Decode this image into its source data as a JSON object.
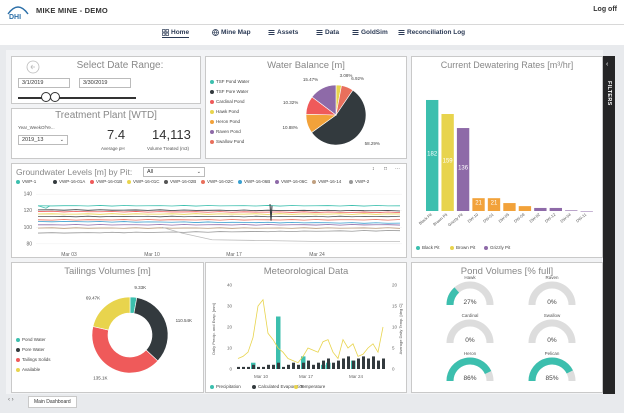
{
  "header": {
    "title": "MIKE MINE - DEMO",
    "logoff": "Log off",
    "logo_text": "DHI"
  },
  "nav": {
    "tabs": [
      {
        "label": "Home",
        "icon": "grid-icon",
        "active": true
      },
      {
        "label": "Mine Map",
        "icon": "globe-icon",
        "active": false
      },
      {
        "label": "Assets",
        "icon": "list-icon",
        "active": false
      },
      {
        "label": "Data",
        "icon": "list-icon",
        "active": false
      },
      {
        "label": "GoldSim",
        "icon": "list-icon",
        "active": false
      },
      {
        "label": "Reconciliation Log",
        "icon": "list-icon",
        "active": false
      }
    ]
  },
  "date_range": {
    "title": "Select Date Range:",
    "start": "3/1/2019",
    "end": "3/30/2019"
  },
  "treatment": {
    "title": "Treatment Plant [WTD]",
    "filter_label": "Year_WeekOfYe...",
    "filter_value": "2019_13",
    "avg_ph": "7.4",
    "avg_ph_label": "Average pH",
    "volume": "14,113",
    "volume_label": "Volume Treated (m3)"
  },
  "water_balance": {
    "title": "Water Balance [m]",
    "legend": [
      "TSF Pond Water",
      "TSF Pore Water",
      "Cardinal Pond",
      "Hawk Pond",
      "Heron Pond",
      "Raven Pond",
      "Swallow Pond"
    ],
    "slices": [
      {
        "label": "3.08%",
        "value": 3.08,
        "color": "#e8d44d"
      },
      {
        "label": "6.92%",
        "value": 6.92,
        "color": "#e86f5c"
      },
      {
        "label": "58.29%",
        "value": 58.29,
        "color": "#333a3e"
      },
      {
        "label": "10.88%",
        "value": 10.88,
        "color": "#f2a23a"
      },
      {
        "label": "10.32%",
        "value": 10.32,
        "color": "#ef5a5a"
      },
      {
        "label": "15.47%",
        "value": 15.47,
        "color": "#8e6aa8"
      }
    ],
    "colors": [
      "#3cbfae",
      "#333a3e",
      "#ef5a5a",
      "#e8d44d",
      "#f2a23a",
      "#8e6aa8",
      "#e86f5c"
    ]
  },
  "dewatering": {
    "title": "Current Dewatering Rates [m³/hr]",
    "legend": [
      "Black Pit",
      "Brown Pit",
      "Grizzly Pit"
    ],
    "legend_colors": [
      "#3cbfae",
      "#e8d44d",
      "#8e6aa8"
    ]
  },
  "chart_data": [
    {
      "type": "bar",
      "title": "Current Dewatering Rates [m³/hr]",
      "categories": [
        "Black Pit",
        "Brown Pit",
        "Grizzly Pit",
        "DW-10",
        "DW-01",
        "DW-05",
        "DW-08",
        "DW-02",
        "DW-12",
        "DW-04",
        "DW-11"
      ],
      "values": [
        182,
        159,
        136,
        21,
        21,
        13,
        8,
        5,
        5,
        1,
        0
      ],
      "labels": [
        "182",
        "159",
        "136",
        "21",
        "21",
        "",
        "",
        "",
        "",
        "",
        ""
      ],
      "colors": [
        "#3cbfae",
        "#e8d44d",
        "#8e6aa8",
        "#f2a23a",
        "#f2a23a",
        "#f2a23a",
        "#f2a23a",
        "#8e6aa8",
        "#8e6aa8",
        "#8e6aa8",
        "#8e6aa8"
      ],
      "ylim": [
        0,
        200
      ]
    },
    {
      "type": "line",
      "title": "Groundwater Levels [m] by Pit:",
      "pit": "All",
      "series_names": [
        "VWP-1",
        "VWP-16-01A",
        "VWP-16-01B",
        "VWP-16-01C",
        "VWP-16-02B",
        "VWP-16-02C",
        "VWP-16-06B",
        "VWP-16-06C",
        "VWP-16-14",
        "VWP-2"
      ],
      "series_colors": [
        "#3cbfae",
        "#333a3e",
        "#ef5a5a",
        "#e8d44d",
        "#555555",
        "#e86f5c",
        "#3aa0d0",
        "#8e6aa8",
        "#c0a080",
        "#999999"
      ],
      "yticks": [
        "140",
        "120",
        "100",
        "80"
      ],
      "xticks": [
        "Mar 03",
        "Mar 10",
        "Mar 17",
        "Mar 24"
      ],
      "ylim": [
        75,
        145
      ]
    },
    {
      "type": "pie",
      "title": "Tailings Volumes [m]",
      "slices": [
        {
          "label": "9.33K",
          "value": 9.33
        },
        {
          "label": "110.54K",
          "value": 110.54
        },
        {
          "label": "135.1K",
          "value": 135.1
        },
        {
          "label": "69.47K",
          "value": 69.47
        }
      ],
      "legend": [
        "Pond Water",
        "Pore Water",
        "Tailings Solids",
        "Available"
      ],
      "colors": [
        "#3cbfae",
        "#333a3e",
        "#ef5a5a",
        "#e8d44d"
      ]
    },
    {
      "type": "bar",
      "title": "Meteorological Data",
      "ylabel_left": "Daily Precip. and Evap. [mm]",
      "ylabel_right": "Average Daily Temp. [deg C]",
      "yticks_left": [
        "40",
        "30",
        "20",
        "10",
        "0"
      ],
      "yticks_right": [
        "20",
        "15",
        "10",
        "5",
        "0"
      ],
      "xticks": [
        "Mar 10",
        "Mar 17",
        "Mar 24"
      ],
      "legend": [
        "Precipitation",
        "Calculated Evaporation",
        "Temperature"
      ],
      "legend_colors": [
        "#3cbfae",
        "#333a3e",
        "#e8d44d"
      ]
    }
  ],
  "tailings": {
    "title": "Tailings Volumes [m]"
  },
  "met": {
    "title": "Meteorological Data"
  },
  "ponds": {
    "title": "Pond Volumes [% full]",
    "items": [
      {
        "name": "Hawk",
        "value": "27%",
        "pct": 27
      },
      {
        "name": "Raven",
        "value": "0%",
        "pct": 0
      },
      {
        "name": "Cardinal",
        "value": "0%",
        "pct": 0
      },
      {
        "name": "Swallow",
        "value": "0%",
        "pct": 0
      },
      {
        "name": "Heron",
        "value": "86%",
        "pct": 86
      },
      {
        "name": "Pelican",
        "value": "85%",
        "pct": 85
      }
    ]
  },
  "filters": {
    "label": "FILTERS"
  },
  "footer": {
    "tab": "Main Dashboard"
  }
}
